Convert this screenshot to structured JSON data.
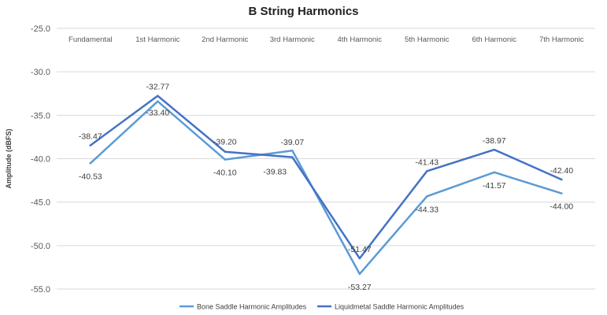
{
  "chart_data": {
    "type": "line",
    "title": "B String Harmonics",
    "xlabel": "",
    "ylabel": "Amplitude (dBFS)",
    "ylim": [
      -55.0,
      -25.0
    ],
    "yticks": [
      "-25.0",
      "-30.0",
      "-35.0",
      "-40.0",
      "-45.0",
      "-50.0",
      "-55.0"
    ],
    "x_axis_position": "top",
    "grid": true,
    "legend": "bottom",
    "categories": [
      "Fundamental",
      "1st Harmonic",
      "2nd Harmonic",
      "3rd Harmonic",
      "4th Harmonic",
      "5th Harmonic",
      "6th Harmonic",
      "7th Harmonic"
    ],
    "series": [
      {
        "name": "Bone Saddle Harmonic Amplitudes",
        "color": "#5b9bd5",
        "values": [
          -40.53,
          -33.4,
          -40.1,
          -39.07,
          -53.27,
          -44.33,
          -41.57,
          -44.0
        ],
        "labels": [
          "-40.53",
          "-33.40",
          "-40.10",
          "-39.07",
          "-53.27",
          "-44.33",
          "-41.57",
          "-44.00"
        ]
      },
      {
        "name": "Liquidmetal Saddle Harmonic Amplitudes",
        "color": "#4472c4",
        "values": [
          -38.47,
          -32.77,
          -39.2,
          -39.83,
          -51.47,
          -41.43,
          -38.97,
          -42.4
        ],
        "labels": [
          "-38.47",
          "-32.77",
          "-39.20",
          "-39.83",
          "-51.47",
          "-41.43",
          "-38.97",
          "-42.40"
        ]
      }
    ]
  }
}
